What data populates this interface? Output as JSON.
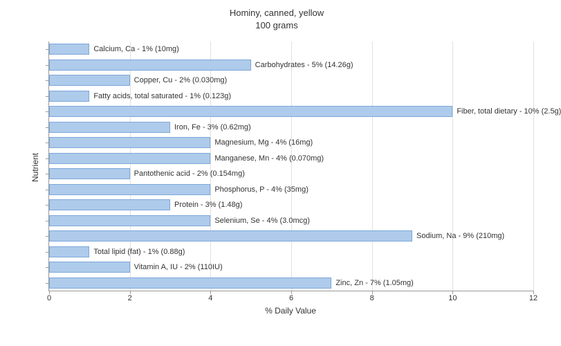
{
  "chart": {
    "type": "bar-horizontal",
    "title_line1": "Hominy, canned, yellow",
    "title_line2": "100 grams",
    "title_fontsize": 13,
    "xlabel": "% Daily Value",
    "ylabel": "Nutrient",
    "label_fontsize": 12,
    "xlim": [
      0,
      12
    ],
    "xtick_step": 2,
    "xticks": [
      0,
      2,
      4,
      6,
      8,
      10,
      12
    ],
    "background_color": "#ffffff",
    "grid_color": "#e0e0e0",
    "axis_color": "#999999",
    "bar_fill": "#aecbeb",
    "bar_border": "#7da7d9",
    "bar_label_fontsize": 11,
    "tick_label_fontsize": 11,
    "bars": [
      {
        "label": "Calcium, Ca - 1% (10mg)",
        "value": 1
      },
      {
        "label": "Carbohydrates - 5% (14.26g)",
        "value": 5
      },
      {
        "label": "Copper, Cu - 2% (0.030mg)",
        "value": 2
      },
      {
        "label": "Fatty acids, total saturated - 1% (0.123g)",
        "value": 1
      },
      {
        "label": "Fiber, total dietary - 10% (2.5g)",
        "value": 10
      },
      {
        "label": "Iron, Fe - 3% (0.62mg)",
        "value": 3
      },
      {
        "label": "Magnesium, Mg - 4% (16mg)",
        "value": 4
      },
      {
        "label": "Manganese, Mn - 4% (0.070mg)",
        "value": 4
      },
      {
        "label": "Pantothenic acid - 2% (0.154mg)",
        "value": 2
      },
      {
        "label": "Phosphorus, P - 4% (35mg)",
        "value": 4
      },
      {
        "label": "Protein - 3% (1.48g)",
        "value": 3
      },
      {
        "label": "Selenium, Se - 4% (3.0mcg)",
        "value": 4
      },
      {
        "label": "Sodium, Na - 9% (210mg)",
        "value": 9
      },
      {
        "label": "Total lipid (fat) - 1% (0.88g)",
        "value": 1
      },
      {
        "label": "Vitamin A, IU - 2% (110IU)",
        "value": 2
      },
      {
        "label": "Zinc, Zn - 7% (1.05mg)",
        "value": 7
      }
    ]
  }
}
